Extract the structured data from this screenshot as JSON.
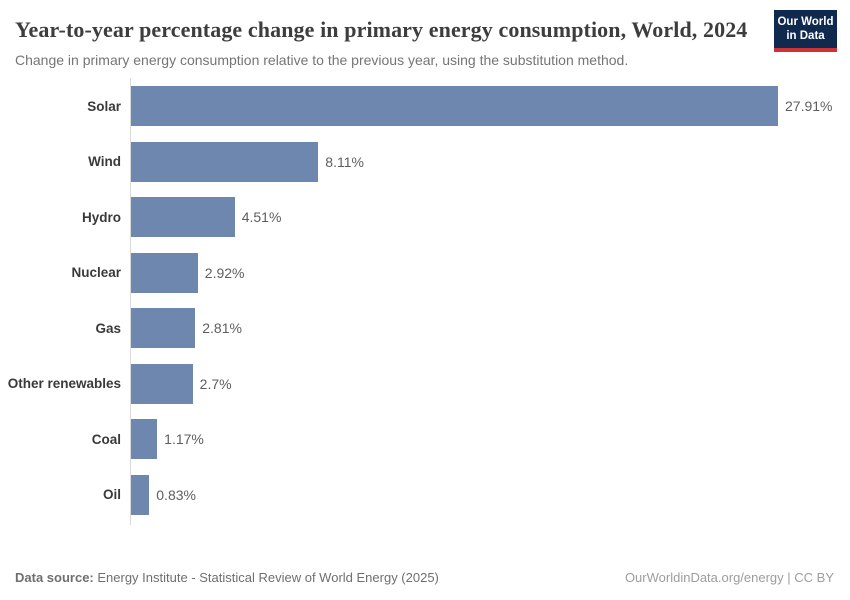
{
  "header": {
    "title": "Year-to-year percentage change in primary energy consumption, World, 2024",
    "subtitle": "Change in primary energy consumption relative to the previous year, using the substitution method."
  },
  "logo": {
    "line1": "Our World",
    "line2": "in Data",
    "bg_color": "#0f2a4e",
    "accent_color": "#cb3335"
  },
  "chart_data": {
    "type": "bar",
    "orientation": "horizontal",
    "title": "Year-to-year percentage change in primary energy consumption, World, 2024",
    "subtitle": "Change in primary energy consumption relative to the previous year, using the substitution method.",
    "categories": [
      "Solar",
      "Wind",
      "Hydro",
      "Nuclear",
      "Gas",
      "Other renewables",
      "Coal",
      "Oil"
    ],
    "values": [
      27.91,
      8.11,
      4.51,
      2.92,
      2.81,
      2.7,
      1.17,
      0.83
    ],
    "value_labels": [
      "27.91%",
      "8.11%",
      "4.51%",
      "2.92%",
      "2.81%",
      "2.7%",
      "1.17%",
      "0.83%"
    ],
    "unit": "%",
    "bar_color": "#6e87ae",
    "axis_color": "#dadada",
    "xlim": [
      0,
      27.91
    ],
    "grid": false,
    "legend": "none"
  },
  "footer": {
    "datasource_label": "Data source:",
    "datasource_text": " Energy Institute - Statistical Review of World Energy (2025)",
    "attribution": "OurWorldinData.org/energy | CC BY"
  }
}
